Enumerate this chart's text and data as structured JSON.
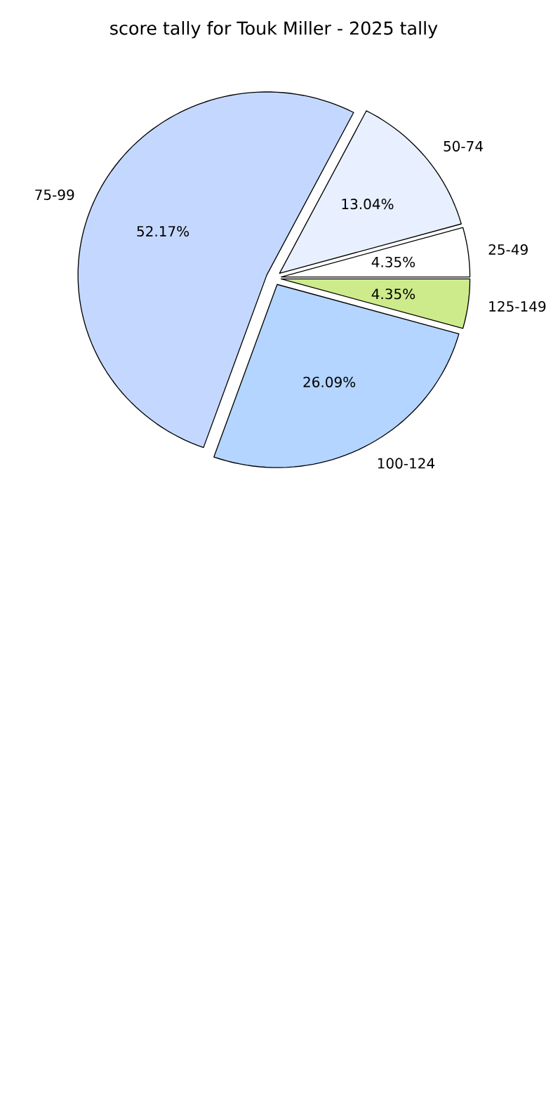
{
  "chart_data": {
    "type": "pie",
    "title": "score tally for Touk Miller - 2025 tally",
    "categories": [
      "25-49",
      "50-74",
      "75-99",
      "100-124",
      "125-149"
    ],
    "values": [
      4.35,
      13.04,
      52.17,
      26.09,
      4.35
    ],
    "colors": [
      "#ffffff",
      "#e8f0ff",
      "#c4d8ff",
      "#b3d5ff",
      "#cdeb8b"
    ],
    "value_labels": [
      "4.35%",
      "13.04%",
      "52.17%",
      "26.09%",
      "4.35%"
    ]
  }
}
